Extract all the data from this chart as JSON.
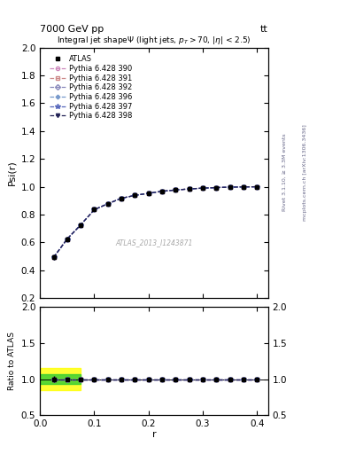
{
  "title_top": "7000 GeV pp",
  "title_right": "tt",
  "plot_title": "Integral jet shapeΨ (light jets, p_{T}>70, |η| < 2.5)",
  "xlabel": "r",
  "ylabel_main": "Psi(r)",
  "ylabel_ratio": "Ratio to ATLAS",
  "right_label1": "Rivet 3.1.10, ≥ 3.3M events",
  "right_label2": "mcplots.cern.ch [arXiv:1306.3436]",
  "watermark": "ATLAS_2013_I1243871",
  "r_values": [
    0.025,
    0.05,
    0.075,
    0.1,
    0.125,
    0.15,
    0.175,
    0.2,
    0.225,
    0.25,
    0.275,
    0.3,
    0.325,
    0.35,
    0.375,
    0.4
  ],
  "atlas_data": [
    0.492,
    0.624,
    0.726,
    0.835,
    0.878,
    0.917,
    0.938,
    0.953,
    0.967,
    0.977,
    0.984,
    0.99,
    0.994,
    0.997,
    0.999,
    1.0
  ],
  "atlas_err": [
    0.02,
    0.015,
    0.012,
    0.01,
    0.008,
    0.007,
    0.006,
    0.005,
    0.005,
    0.004,
    0.004,
    0.003,
    0.003,
    0.002,
    0.002,
    0.001
  ],
  "pythia_390": [
    0.492,
    0.624,
    0.726,
    0.835,
    0.878,
    0.917,
    0.938,
    0.953,
    0.967,
    0.977,
    0.984,
    0.99,
    0.994,
    0.997,
    0.999,
    1.0
  ],
  "pythia_391": [
    0.492,
    0.624,
    0.726,
    0.835,
    0.878,
    0.917,
    0.938,
    0.953,
    0.967,
    0.977,
    0.984,
    0.99,
    0.994,
    0.997,
    0.999,
    1.0
  ],
  "pythia_392": [
    0.492,
    0.624,
    0.726,
    0.835,
    0.878,
    0.917,
    0.938,
    0.953,
    0.967,
    0.977,
    0.984,
    0.99,
    0.994,
    0.997,
    0.999,
    1.0
  ],
  "pythia_396": [
    0.492,
    0.624,
    0.726,
    0.835,
    0.878,
    0.917,
    0.938,
    0.953,
    0.967,
    0.977,
    0.984,
    0.99,
    0.994,
    0.997,
    0.999,
    1.0
  ],
  "pythia_397": [
    0.492,
    0.624,
    0.726,
    0.835,
    0.878,
    0.917,
    0.938,
    0.953,
    0.967,
    0.977,
    0.984,
    0.99,
    0.994,
    0.997,
    0.999,
    1.0
  ],
  "pythia_398": [
    0.492,
    0.624,
    0.726,
    0.835,
    0.878,
    0.917,
    0.938,
    0.953,
    0.967,
    0.977,
    0.984,
    0.99,
    0.994,
    0.997,
    0.999,
    1.0
  ],
  "ylim_main": [
    0.2,
    2.0
  ],
  "ylim_ratio": [
    0.5,
    2.0
  ],
  "xlim": [
    0.0,
    0.42
  ],
  "color_390": "#cc88bb",
  "color_391": "#cc8888",
  "color_392": "#8888bb",
  "color_396": "#7799cc",
  "color_397": "#5566bb",
  "color_398": "#222255",
  "marker_390": "o",
  "marker_391": "s",
  "marker_392": "D",
  "marker_396": "P",
  "marker_397": "*",
  "marker_398": "v",
  "bg_color": "#ffffff"
}
